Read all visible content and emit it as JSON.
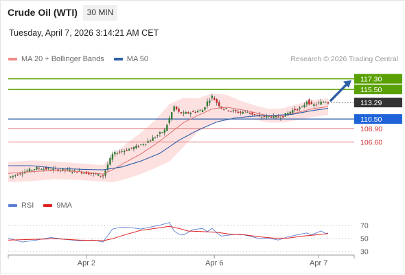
{
  "header": {
    "title": "Crude Oil (WTI)",
    "timeframe": "30 MIN",
    "datetime": "Tuesday, April 7, 2026 3:14:21 AM CET"
  },
  "legend": {
    "items": [
      {
        "label": "MA 20 + Bollinger Bands",
        "color": "#f08a8a"
      },
      {
        "label": "MA 50",
        "color": "#2f5fa7"
      }
    ],
    "credit": "Research © 2026 Trading Central"
  },
  "rsi_legend": {
    "items": [
      {
        "label": "RSI",
        "color": "#5b7fd4"
      },
      {
        "label": "9MA",
        "color": "#e02020"
      }
    ]
  },
  "colors": {
    "resistance": "#5aa000",
    "support": "#2f5fa7",
    "minor_level": "#e07070",
    "current": "#333333",
    "bollinger_fill": "#fde0e0",
    "candle_up": "#2e7d32",
    "candle_down": "#c62828",
    "arrow": "#2f5fa7"
  },
  "chart_data": [
    {
      "type": "candlestick",
      "ylim": [
        99.0,
        119.0
      ],
      "x_ticks": [
        "Apr 2",
        "Apr 6",
        "Apr 7"
      ],
      "levels": [
        {
          "value": 117.3,
          "label": "117.30",
          "kind": "resistance"
        },
        {
          "value": 115.5,
          "label": "115.50",
          "kind": "resistance"
        },
        {
          "value": 113.29,
          "label": "113.29",
          "kind": "current"
        },
        {
          "value": 110.5,
          "label": "110.50",
          "kind": "support"
        },
        {
          "value": 108.9,
          "label": "108.90",
          "kind": "minor"
        },
        {
          "value": 106.6,
          "label": "106.60",
          "kind": "minor"
        }
      ],
      "price_path": [
        [
          0,
          100.6
        ],
        [
          6,
          101.5
        ],
        [
          12,
          102.2
        ],
        [
          18,
          102.0
        ],
        [
          24,
          101.9
        ],
        [
          30,
          101.6
        ],
        [
          36,
          101.2
        ],
        [
          40,
          100.9
        ],
        [
          42,
          102.8
        ],
        [
          44,
          104.5
        ],
        [
          46,
          104.9
        ],
        [
          50,
          105.3
        ],
        [
          54,
          105.8
        ],
        [
          58,
          106.5
        ],
        [
          62,
          107.5
        ],
        [
          66,
          108.6
        ],
        [
          68,
          110.6
        ],
        [
          70,
          112.6
        ],
        [
          72,
          111.6
        ],
        [
          74,
          111.4
        ],
        [
          78,
          111.7
        ],
        [
          82,
          112.0
        ],
        [
          84,
          113.4
        ],
        [
          86,
          114.3
        ],
        [
          88,
          113.3
        ],
        [
          90,
          112.4
        ],
        [
          94,
          111.9
        ],
        [
          98,
          111.6
        ],
        [
          100,
          111.8
        ],
        [
          104,
          111.2
        ],
        [
          106,
          110.8
        ],
        [
          110,
          111.0
        ],
        [
          114,
          110.8
        ],
        [
          116,
          111.0
        ],
        [
          118,
          111.5
        ],
        [
          120,
          112.0
        ],
        [
          124,
          112.4
        ],
        [
          126,
          113.6
        ],
        [
          128,
          112.8
        ],
        [
          130,
          113.0
        ],
        [
          132,
          113.3
        ],
        [
          134,
          113.5
        ],
        [
          135,
          113.29
        ]
      ],
      "ma20": [
        [
          0,
          101.3
        ],
        [
          10,
          101.6
        ],
        [
          20,
          101.8
        ],
        [
          30,
          101.6
        ],
        [
          40,
          101.2
        ],
        [
          44,
          101.9
        ],
        [
          50,
          103.3
        ],
        [
          56,
          104.6
        ],
        [
          62,
          106.2
        ],
        [
          68,
          108.0
        ],
        [
          74,
          109.9
        ],
        [
          80,
          111.1
        ],
        [
          86,
          112.2
        ],
        [
          92,
          112.5
        ],
        [
          98,
          112.1
        ],
        [
          104,
          111.6
        ],
        [
          110,
          111.0
        ],
        [
          116,
          111.1
        ],
        [
          122,
          111.6
        ],
        [
          128,
          112.2
        ],
        [
          135,
          112.6
        ]
      ],
      "ma50": [
        [
          0,
          102.6
        ],
        [
          10,
          102.6
        ],
        [
          20,
          102.2
        ],
        [
          30,
          102.0
        ],
        [
          40,
          101.9
        ],
        [
          48,
          102.4
        ],
        [
          56,
          103.4
        ],
        [
          64,
          104.7
        ],
        [
          72,
          106.9
        ],
        [
          80,
          108.6
        ],
        [
          88,
          110.0
        ],
        [
          96,
          110.7
        ],
        [
          104,
          111.0
        ],
        [
          112,
          111.1
        ],
        [
          120,
          111.3
        ],
        [
          128,
          111.9
        ],
        [
          135,
          112.3
        ]
      ],
      "bb_upper": [
        [
          0,
          103.2
        ],
        [
          10,
          103.5
        ],
        [
          20,
          103.3
        ],
        [
          30,
          103.0
        ],
        [
          40,
          102.7
        ],
        [
          44,
          104.2
        ],
        [
          50,
          106.4
        ],
        [
          56,
          108.2
        ],
        [
          62,
          110.3
        ],
        [
          68,
          113.0
        ],
        [
          74,
          114.1
        ],
        [
          80,
          114.0
        ],
        [
          86,
          114.8
        ],
        [
          92,
          114.6
        ],
        [
          98,
          113.6
        ],
        [
          104,
          112.8
        ],
        [
          110,
          112.2
        ],
        [
          116,
          112.3
        ],
        [
          122,
          113.0
        ],
        [
          128,
          113.7
        ],
        [
          135,
          114.0
        ]
      ],
      "bb_lower": [
        [
          0,
          99.8
        ],
        [
          10,
          100.0
        ],
        [
          20,
          100.3
        ],
        [
          30,
          100.2
        ],
        [
          40,
          99.9
        ],
        [
          44,
          99.8
        ],
        [
          50,
          100.4
        ],
        [
          56,
          101.2
        ],
        [
          62,
          102.2
        ],
        [
          68,
          103.3
        ],
        [
          74,
          105.8
        ],
        [
          80,
          108.3
        ],
        [
          86,
          109.7
        ],
        [
          92,
          110.4
        ],
        [
          98,
          110.6
        ],
        [
          104,
          110.4
        ],
        [
          110,
          109.9
        ],
        [
          116,
          109.9
        ],
        [
          122,
          110.3
        ],
        [
          128,
          110.8
        ],
        [
          135,
          111.2
        ]
      ],
      "projection": {
        "from": 113.29,
        "to": 117.3
      }
    },
    {
      "type": "line",
      "name": "RSI",
      "ylim": [
        25,
        80
      ],
      "y_ticks": [
        70,
        50,
        30
      ],
      "rsi": [
        [
          0,
          50
        ],
        [
          6,
          44
        ],
        [
          12,
          47
        ],
        [
          18,
          51
        ],
        [
          24,
          48
        ],
        [
          30,
          46
        ],
        [
          36,
          47
        ],
        [
          40,
          44
        ],
        [
          44,
          64
        ],
        [
          48,
          67
        ],
        [
          52,
          66
        ],
        [
          56,
          64
        ],
        [
          60,
          67
        ],
        [
          64,
          70
        ],
        [
          68,
          74
        ],
        [
          70,
          61
        ],
        [
          72,
          56
        ],
        [
          74,
          55
        ],
        [
          78,
          63
        ],
        [
          82,
          65
        ],
        [
          84,
          60
        ],
        [
          86,
          65
        ],
        [
          88,
          58
        ],
        [
          90,
          53
        ],
        [
          94,
          55
        ],
        [
          98,
          56
        ],
        [
          102,
          53
        ],
        [
          106,
          49
        ],
        [
          110,
          50
        ],
        [
          114,
          47
        ],
        [
          118,
          52
        ],
        [
          122,
          55
        ],
        [
          126,
          58
        ],
        [
          128,
          55
        ],
        [
          132,
          61
        ],
        [
          134,
          57
        ],
        [
          135,
          58
        ]
      ],
      "ma9": [
        [
          0,
          47
        ],
        [
          10,
          48
        ],
        [
          20,
          49
        ],
        [
          30,
          47
        ],
        [
          40,
          46
        ],
        [
          44,
          49
        ],
        [
          50,
          56
        ],
        [
          56,
          62
        ],
        [
          62,
          65
        ],
        [
          68,
          68
        ],
        [
          72,
          65
        ],
        [
          76,
          61
        ],
        [
          82,
          60
        ],
        [
          88,
          59
        ],
        [
          94,
          56
        ],
        [
          100,
          55
        ],
        [
          106,
          52
        ],
        [
          112,
          50
        ],
        [
          118,
          50
        ],
        [
          124,
          53
        ],
        [
          130,
          55
        ],
        [
          135,
          57
        ]
      ]
    }
  ]
}
